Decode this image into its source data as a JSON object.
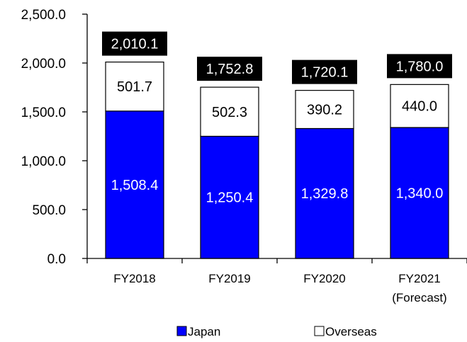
{
  "chart_data": {
    "type": "bar",
    "stacked": true,
    "categories": [
      [
        "FY2018"
      ],
      [
        "FY2019"
      ],
      [
        "FY2020"
      ],
      [
        "FY2021",
        "(Forecast)"
      ]
    ],
    "series": [
      {
        "name": "Japan",
        "values": [
          1508.4,
          1250.4,
          1329.8,
          1340.0
        ],
        "labels": [
          "1,508.4",
          "1,250.4",
          "1,329.8",
          "1,340.0"
        ],
        "color": "#0000ff"
      },
      {
        "name": "Overseas",
        "values": [
          501.7,
          502.3,
          390.2,
          440.0
        ],
        "labels": [
          "501.7",
          "502.3",
          "390.2",
          "440.0"
        ],
        "color": "#ffffff"
      }
    ],
    "totals": [
      "2,010.1",
      "1,752.8",
      "1,720.1",
      "1,780.0"
    ],
    "y_ticks": [
      {
        "value": 0,
        "label": "0.0"
      },
      {
        "value": 500,
        "label": "500.0"
      },
      {
        "value": 1000,
        "label": "1,000.0"
      },
      {
        "value": 1500,
        "label": "1,500.0"
      },
      {
        "value": 2000,
        "label": "2,000.0"
      },
      {
        "value": 2500,
        "label": "2,500.0"
      }
    ],
    "ylim": [
      0,
      2500
    ],
    "grid": false,
    "legend_position": "bottom"
  }
}
